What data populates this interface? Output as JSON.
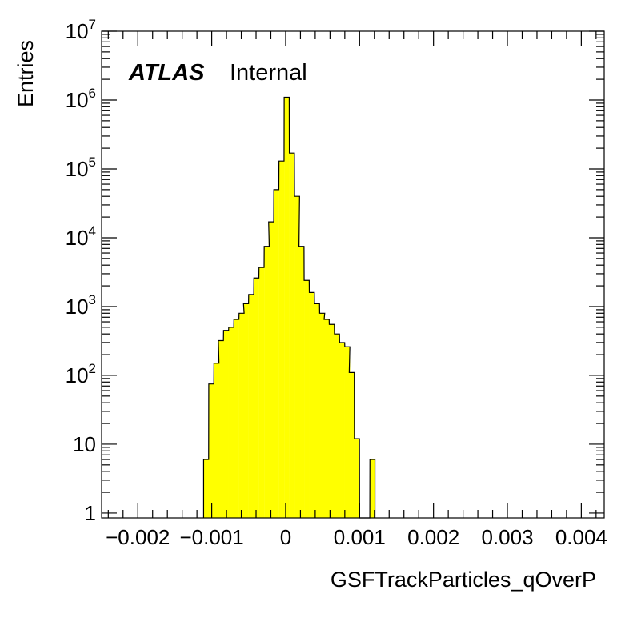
{
  "chart_data": {
    "type": "histogram",
    "title": "",
    "xlabel": "GSFTrackParticles_qOverP",
    "ylabel": "Entries",
    "xlim": [
      -0.00249,
      0.00431
    ],
    "ylim": [
      0.85,
      10000000
    ],
    "yscale": "log",
    "grid": false,
    "legend": "none",
    "label": {
      "experiment": "ATLAS",
      "status": "Internal"
    },
    "x_ticks": [
      {
        "value": -0.002,
        "label": "−0.002"
      },
      {
        "value": -0.001,
        "label": "−0.001"
      },
      {
        "value": 0,
        "label": "0"
      },
      {
        "value": 0.001,
        "label": "0.001"
      },
      {
        "value": 0.002,
        "label": "0.002"
      },
      {
        "value": 0.003,
        "label": "0.003"
      },
      {
        "value": 0.004,
        "label": "0.004"
      }
    ],
    "y_ticks": [
      {
        "value": 1,
        "base": "1",
        "exp": ""
      },
      {
        "value": 10,
        "base": "10",
        "exp": ""
      },
      {
        "value": 100,
        "base": "10",
        "exp": "2"
      },
      {
        "value": 1000,
        "base": "10",
        "exp": "3"
      },
      {
        "value": 10000,
        "base": "10",
        "exp": "4"
      },
      {
        "value": 100000,
        "base": "10",
        "exp": "5"
      },
      {
        "value": 1000000,
        "base": "10",
        "exp": "6"
      },
      {
        "value": 10000000,
        "base": "10",
        "exp": "7"
      }
    ],
    "bin_width": 6.825e-05,
    "bins": [
      {
        "x0": -0.00111,
        "y": 6
      },
      {
        "x0": -0.00104,
        "y": 75
      },
      {
        "x0": -0.00097,
        "y": 150
      },
      {
        "x0": -0.00091,
        "y": 320
      },
      {
        "x0": -0.00084,
        "y": 450
      },
      {
        "x0": -0.00077,
        "y": 500
      },
      {
        "x0": -0.0007,
        "y": 650
      },
      {
        "x0": -0.00063,
        "y": 800
      },
      {
        "x0": -0.00057,
        "y": 1100
      },
      {
        "x0": -0.0005,
        "y": 1500
      },
      {
        "x0": -0.00043,
        "y": 2600
      },
      {
        "x0": -0.00036,
        "y": 3700
      },
      {
        "x0": -0.00029,
        "y": 7500
      },
      {
        "x0": -0.00023,
        "y": 17000
      },
      {
        "x0": -0.00016,
        "y": 50000
      },
      {
        "x0": -9e-05,
        "y": 130000
      },
      {
        "x0": -2e-05,
        "y": 1100000
      },
      {
        "x0": 5e-05,
        "y": 170000
      },
      {
        "x0": 0.00012,
        "y": 40000
      },
      {
        "x0": 0.00018,
        "y": 7500
      },
      {
        "x0": 0.00025,
        "y": 2400
      },
      {
        "x0": 0.00032,
        "y": 1600
      },
      {
        "x0": 0.00039,
        "y": 1100
      },
      {
        "x0": 0.00046,
        "y": 800
      },
      {
        "x0": 0.00052,
        "y": 650
      },
      {
        "x0": 0.00059,
        "y": 550
      },
      {
        "x0": 0.00066,
        "y": 400
      },
      {
        "x0": 0.00073,
        "y": 300
      },
      {
        "x0": 0.0008,
        "y": 260
      },
      {
        "x0": 0.00086,
        "y": 110
      },
      {
        "x0": 0.00093,
        "y": 12
      },
      {
        "x0": 0.001,
        "y": 0
      },
      {
        "x0": 0.00107,
        "y": 0
      },
      {
        "x0": 0.00114,
        "y": 6
      }
    ],
    "fill_color": "#ffff00",
    "line_color": "#000000"
  }
}
